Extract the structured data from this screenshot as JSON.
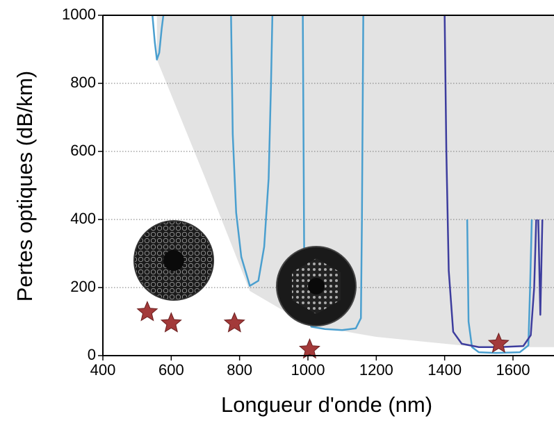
{
  "chart_data": {
    "type": "line",
    "x_label": "Longueur d'onde (nm)",
    "y_label": "Pertes optiques (dB/km)",
    "xlim": [
      400,
      1720
    ],
    "ylim": [
      0,
      1000
    ],
    "xticks": [
      400,
      600,
      800,
      1000,
      1200,
      1400,
      1600
    ],
    "yticks": [
      0,
      200,
      400,
      600,
      800,
      1000
    ],
    "grid": true,
    "area": {
      "color": "#e3e3e3",
      "x": [
        558,
        700,
        830,
        1000,
        1200,
        1500,
        1720
      ],
      "values": [
        870,
        520,
        190,
        90,
        55,
        25,
        25
      ]
    },
    "series": [
      {
        "color": "#4a9fcf",
        "x": [
          545,
          552,
          558,
          565,
          572,
          577,
          null,
          775,
          780,
          790,
          805,
          830,
          855,
          872,
          885,
          892,
          896,
          null,
          985,
          989,
          995,
          1010,
          1050,
          1100,
          1140,
          1155,
          1158,
          1162,
          null,
          1466,
          1470,
          1480,
          1500,
          1550,
          1620,
          1645,
          1650,
          1655
        ],
        "values": [
          1000,
          920,
          870,
          890,
          960,
          1000,
          null,
          1000,
          650,
          420,
          290,
          205,
          220,
          320,
          520,
          800,
          1000,
          null,
          1000,
          300,
          120,
          85,
          78,
          75,
          80,
          110,
          400,
          1000,
          null,
          400,
          100,
          25,
          10,
          8,
          10,
          30,
          200,
          400
        ]
      },
      {
        "color": "#3d3d9e",
        "x": [
          1400,
          1405,
          1412,
          1425,
          1450,
          1500,
          1560,
          1630,
          1652,
          1662,
          1668,
          null,
          1674,
          1680,
          1686
        ],
        "values": [
          1000,
          600,
          250,
          70,
          35,
          25,
          25,
          28,
          60,
          200,
          400,
          null,
          400,
          120,
          400
        ]
      }
    ],
    "markers": {
      "color": "#a33a3a",
      "x": [
        530,
        600,
        785,
        1005,
        1558
      ],
      "values": [
        128,
        95,
        95,
        18,
        35
      ]
    }
  }
}
